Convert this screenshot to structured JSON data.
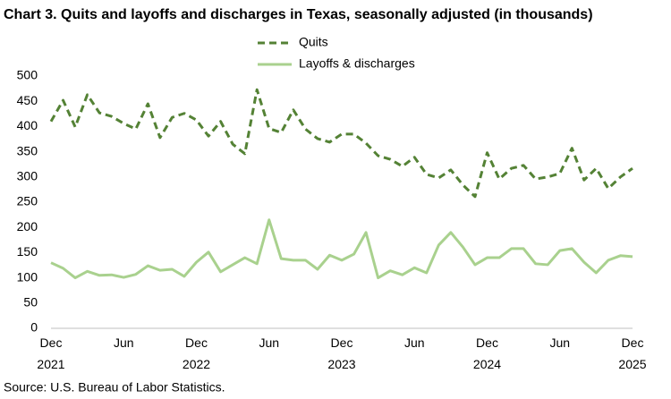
{
  "chart_data": {
    "type": "line",
    "title": "Chart 3. Quits and layoffs and discharges in Texas, seasonally adjusted (in thousands)",
    "source": "Source: U.S. Bureau of Labor Statistics.",
    "categories": [
      "Dec 2021",
      null,
      null,
      null,
      null,
      null,
      "Jun",
      null,
      null,
      null,
      null,
      null,
      "Dec 2022",
      null,
      null,
      null,
      null,
      null,
      "Jun",
      null,
      null,
      null,
      null,
      null,
      "Dec 2023",
      null,
      null,
      null,
      null,
      null,
      "Jun",
      null,
      null,
      null,
      null,
      null,
      "Dec 2024",
      null,
      null,
      null,
      null,
      null,
      "Jun",
      null,
      null,
      null,
      null,
      null,
      "Dec 2025"
    ],
    "series": [
      {
        "name": "Quits",
        "color": "#548235",
        "dash": true,
        "values": [
          410,
          452,
          399,
          463,
          427,
          420,
          406,
          395,
          445,
          378,
          418,
          426,
          413,
          381,
          410,
          365,
          346,
          473,
          396,
          388,
          433,
          395,
          376,
          369,
          385,
          385,
          367,
          342,
          335,
          321,
          339,
          305,
          298,
          314,
          284,
          261,
          348,
          296,
          317,
          323,
          296,
          300,
          307,
          357,
          294,
          317,
          277,
          300,
          317
        ]
      },
      {
        "name": "Layoffs & discharges",
        "color": "#a9d18e",
        "dash": false,
        "values": [
          130,
          119,
          100,
          113,
          105,
          106,
          101,
          107,
          124,
          115,
          117,
          103,
          131,
          151,
          112,
          126,
          140,
          128,
          215,
          138,
          135,
          135,
          117,
          145,
          135,
          147,
          190,
          100,
          114,
          106,
          120,
          110,
          165,
          190,
          161,
          126,
          140,
          140,
          158,
          158,
          128,
          126,
          154,
          158,
          131,
          110,
          135,
          144,
          142
        ]
      }
    ],
    "ylim": [
      0,
      500
    ],
    "yticks": [
      0,
      50,
      100,
      150,
      200,
      250,
      300,
      350,
      400,
      450,
      500
    ],
    "grid": false
  }
}
